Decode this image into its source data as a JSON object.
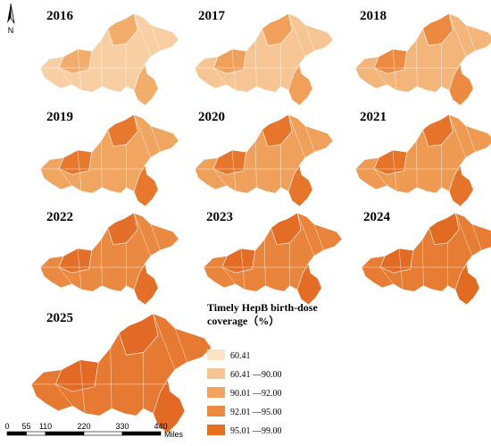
{
  "north": "N",
  "maps": [
    {
      "year": "2016",
      "fill": "#f8cfa2",
      "accent": "#f2ad6c"
    },
    {
      "year": "2017",
      "fill": "#f7c593",
      "accent": "#f0a05a"
    },
    {
      "year": "2018",
      "fill": "#f4b57b",
      "accent": "#eb8a40"
    },
    {
      "year": "2019",
      "fill": "#f0a660",
      "accent": "#e8782e"
    },
    {
      "year": "2020",
      "fill": "#efa05a",
      "accent": "#e7762c"
    },
    {
      "year": "2021",
      "fill": "#ee9a52",
      "accent": "#e6732a"
    },
    {
      "year": "2022",
      "fill": "#ea8a42",
      "accent": "#e46f28"
    },
    {
      "year": "2023",
      "fill": "#e9843c",
      "accent": "#e36d26"
    },
    {
      "year": "2024",
      "fill": "#e77c34",
      "accent": "#e26b24"
    },
    {
      "year": "2025",
      "fill": "#e77a33",
      "accent": "#e26a24"
    }
  ],
  "legend": {
    "title_lines": [
      "Timely HepB birth-dose",
      "coverage（%）"
    ],
    "items": [
      {
        "label": "60.41",
        "color": "#fbe4c8"
      },
      {
        "label": "60.41 —90.00",
        "color": "#f7c390"
      },
      {
        "label": "90.01 —92.00",
        "color": "#f3a463"
      },
      {
        "label": "92.01 —95.00",
        "color": "#ec8940"
      },
      {
        "label": "95.01 —99.00",
        "color": "#e56f22"
      }
    ]
  },
  "scale": {
    "ticks": [
      0,
      55,
      110,
      220,
      330,
      440
    ],
    "unit": "Miles"
  }
}
